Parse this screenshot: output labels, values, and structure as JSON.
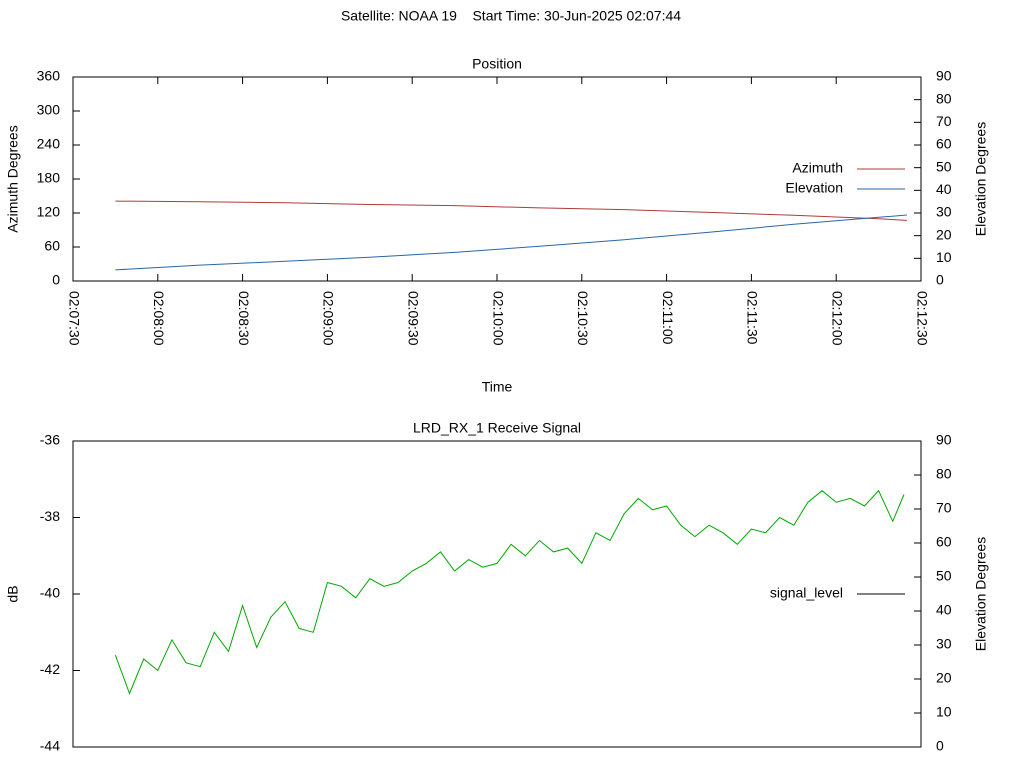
{
  "title": "Satellite: NOAA 19    Start Time: 30-Jun-2025 02:07:44",
  "chart_data": [
    {
      "type": "line",
      "title": "Position",
      "x_label": "Time",
      "y_label": "Azimuth Degrees",
      "y2_label": "Elevation Degrees",
      "xlim": [
        "02:07:30",
        "02:12:30"
      ],
      "xticks": [
        "02:07:30",
        "02:08:00",
        "02:08:30",
        "02:09:00",
        "02:09:30",
        "02:10:00",
        "02:10:30",
        "02:11:00",
        "02:11:30",
        "02:12:00",
        "02:12:30"
      ],
      "ylim": [
        0,
        360
      ],
      "yticks": [
        0,
        60,
        120,
        180,
        240,
        300,
        360
      ],
      "y2lim": [
        0,
        90
      ],
      "y2ticks": [
        0,
        10,
        20,
        30,
        40,
        50,
        60,
        70,
        80,
        90
      ],
      "legend": "right",
      "grid": false,
      "x": [
        "02:07:45",
        "02:08:15",
        "02:08:45",
        "02:09:15",
        "02:09:45",
        "02:10:15",
        "02:10:45",
        "02:11:15",
        "02:11:45",
        "02:12:15",
        "02:12:25"
      ],
      "series": [
        {
          "name": "Azimuth",
          "color": "#b03a3a",
          "values": [
            141,
            140,
            138,
            135,
            133,
            129,
            126,
            121,
            116,
            110,
            107
          ]
        },
        {
          "name": "Elevation",
          "color": "#2a66a8",
          "axis": "y2",
          "values": [
            4.9,
            7.0,
            8.7,
            10.5,
            12.6,
            15.3,
            18.2,
            21.5,
            25.0,
            28.1,
            29.1
          ]
        }
      ]
    },
    {
      "type": "line",
      "title": "LRD_RX_1 Receive Signal",
      "y_label": "dB",
      "y2_label": "Elevation Degrees",
      "xlim": [
        "02:07:30",
        "02:12:30"
      ],
      "ylim": [
        -44,
        -36
      ],
      "yticks": [
        -44,
        -42,
        -40,
        -38,
        -36
      ],
      "y2lim": [
        0,
        90
      ],
      "y2ticks": [
        0,
        10,
        20,
        30,
        40,
        50,
        60,
        70,
        80,
        90
      ],
      "legend": "right",
      "legend_line_color": "#000000",
      "grid": false,
      "x": [
        "02:07:45",
        "02:07:50",
        "02:07:55",
        "02:08:00",
        "02:08:05",
        "02:08:10",
        "02:08:15",
        "02:08:20",
        "02:08:25",
        "02:08:30",
        "02:08:35",
        "02:08:40",
        "02:08:45",
        "02:08:50",
        "02:08:55",
        "02:09:00",
        "02:09:05",
        "02:09:10",
        "02:09:15",
        "02:09:20",
        "02:09:25",
        "02:09:30",
        "02:09:35",
        "02:09:40",
        "02:09:45",
        "02:09:50",
        "02:09:55",
        "02:10:00",
        "02:10:05",
        "02:10:10",
        "02:10:15",
        "02:10:20",
        "02:10:25",
        "02:10:30",
        "02:10:35",
        "02:10:40",
        "02:10:45",
        "02:10:50",
        "02:10:55",
        "02:11:00",
        "02:11:05",
        "02:11:10",
        "02:11:15",
        "02:11:20",
        "02:11:25",
        "02:11:30",
        "02:11:35",
        "02:11:40",
        "02:11:45",
        "02:11:50",
        "02:11:55",
        "02:12:00",
        "02:12:05",
        "02:12:10",
        "02:12:15",
        "02:12:20",
        "02:12:24"
      ],
      "series": [
        {
          "name": "signal_level",
          "color": "#00a800",
          "values": [
            -41.6,
            -42.6,
            -41.7,
            -42.0,
            -41.2,
            -41.8,
            -41.9,
            -41.0,
            -41.5,
            -40.3,
            -41.4,
            -40.6,
            -40.2,
            -40.9,
            -41.0,
            -39.7,
            -39.8,
            -40.1,
            -39.6,
            -39.8,
            -39.7,
            -39.4,
            -39.2,
            -38.9,
            -39.4,
            -39.1,
            -39.3,
            -39.2,
            -38.7,
            -39.0,
            -38.6,
            -38.9,
            -38.8,
            -39.2,
            -38.4,
            -38.6,
            -37.9,
            -37.5,
            -37.8,
            -37.7,
            -38.2,
            -38.5,
            -38.2,
            -38.4,
            -38.7,
            -38.3,
            -38.4,
            -38.0,
            -38.2,
            -37.6,
            -37.3,
            -37.6,
            -37.5,
            -37.7,
            -37.3,
            -38.1,
            -37.4
          ]
        }
      ]
    }
  ]
}
